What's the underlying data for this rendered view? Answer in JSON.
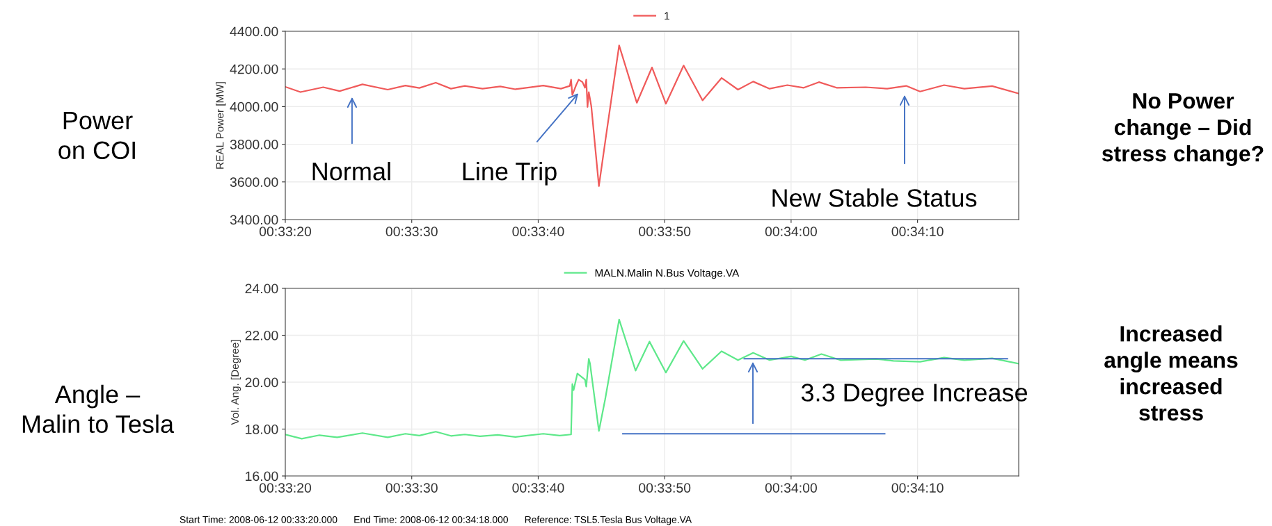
{
  "chart_data": [
    {
      "type": "line",
      "ylabel": "REAL Power [MW]",
      "legend": "top",
      "grid": true,
      "marker": "none",
      "line_style": "solid",
      "xlim": [
        "2008-06-12T00:33:20",
        "2008-06-12T00:34:18"
      ],
      "xticks": [
        {
          "value": "2008-06-12T00:33:20",
          "label": "00:33:20"
        },
        {
          "value": "2008-06-12T00:33:30",
          "label": "00:33:30"
        },
        {
          "value": "2008-06-12T00:33:40",
          "label": "00:33:40"
        },
        {
          "value": "2008-06-12T00:33:50",
          "label": "00:33:50"
        },
        {
          "value": "2008-06-12T00:34:00",
          "label": "00:34:00"
        },
        {
          "value": "2008-06-12T00:34:10",
          "label": "00:34:10"
        }
      ],
      "ylim": [
        3400,
        4400
      ],
      "yticks": [
        {
          "value": 3400,
          "label": "3400.00"
        },
        {
          "value": 3600,
          "label": "3600.00"
        },
        {
          "value": 3800,
          "label": "3800.00"
        },
        {
          "value": 4000,
          "label": "4000.00"
        },
        {
          "value": 4200,
          "label": "4200.00"
        },
        {
          "value": 4400,
          "label": "4400.00"
        }
      ],
      "series": [
        {
          "name": "1",
          "color": "#f05a5a",
          "x": [
            "2008-06-12T00:33:20.0",
            "2008-06-12T00:33:21.2",
            "2008-06-12T00:33:23.0",
            "2008-06-12T00:33:24.3",
            "2008-06-12T00:33:26.1",
            "2008-06-12T00:33:28.1",
            "2008-06-12T00:33:29.5",
            "2008-06-12T00:33:30.6",
            "2008-06-12T00:33:31.9",
            "2008-06-12T00:33:33.1",
            "2008-06-12T00:33:34.2",
            "2008-06-12T00:33:35.6",
            "2008-06-12T00:33:37.0",
            "2008-06-12T00:33:38.2",
            "2008-06-12T00:33:40.4",
            "2008-06-12T00:33:41.8",
            "2008-06-12T00:33:42.5",
            "2008-06-12T00:33:42.6",
            "2008-06-12T00:33:42.7",
            "2008-06-12T00:33:43.0",
            "2008-06-12T00:33:43.2",
            "2008-06-12T00:33:43.5",
            "2008-06-12T00:33:43.7",
            "2008-06-12T00:33:43.8",
            "2008-06-12T00:33:43.9",
            "2008-06-12T00:33:44.0",
            "2008-06-12T00:33:44.2",
            "2008-06-12T00:33:44.8",
            "2008-06-12T00:33:45.3",
            "2008-06-12T00:33:46.4",
            "2008-06-12T00:33:47.8",
            "2008-06-12T00:33:49.0",
            "2008-06-12T00:33:50.1",
            "2008-06-12T00:33:51.5",
            "2008-06-12T00:33:53.0",
            "2008-06-12T00:33:54.5",
            "2008-06-12T00:33:55.8",
            "2008-06-12T00:33:57.0",
            "2008-06-12T00:33:58.3",
            "2008-06-12T00:33:59.7",
            "2008-06-12T00:34:01.0",
            "2008-06-12T00:34:02.2",
            "2008-06-12T00:34:03.6",
            "2008-06-12T00:34:05.9",
            "2008-06-12T00:34:07.6",
            "2008-06-12T00:34:09.1",
            "2008-06-12T00:34:10.2",
            "2008-06-12T00:34:12.1",
            "2008-06-12T00:34:13.7",
            "2008-06-12T00:34:15.9",
            "2008-06-12T00:34:18.0"
          ],
          "values": [
            4105,
            4077,
            4103,
            4082,
            4118,
            4090,
            4112,
            4099,
            4127,
            4095,
            4110,
            4095,
            4107,
            4092,
            4112,
            4095,
            4110,
            4143,
            4062,
            4114,
            4143,
            4130,
            4100,
            4143,
            3998,
            4077,
            4002,
            3578,
            3814,
            4325,
            4020,
            4208,
            4015,
            4218,
            4033,
            4152,
            4090,
            4133,
            4095,
            4114,
            4100,
            4130,
            4100,
            4103,
            4095,
            4110,
            4080,
            4114,
            4095,
            4109,
            4069
          ]
        }
      ],
      "annotations": [
        "Normal",
        "Line Trip",
        "New Stable Status",
        "Power\non COI",
        "No Power\nchange – Did\nstress change?"
      ]
    },
    {
      "type": "line",
      "ylabel": "Vol. Ang. [Degree]",
      "legend": "top",
      "grid": true,
      "marker": "none",
      "line_style": "solid",
      "xlim": [
        "2008-06-12T00:33:20",
        "2008-06-12T00:34:18"
      ],
      "xticks": [
        {
          "value": "2008-06-12T00:33:20",
          "label": "00:33:20"
        },
        {
          "value": "2008-06-12T00:33:30",
          "label": "00:33:30"
        },
        {
          "value": "2008-06-12T00:33:40",
          "label": "00:33:40"
        },
        {
          "value": "2008-06-12T00:33:50",
          "label": "00:33:50"
        },
        {
          "value": "2008-06-12T00:34:00",
          "label": "00:34:00"
        },
        {
          "value": "2008-06-12T00:34:10",
          "label": "00:34:10"
        }
      ],
      "ylim": [
        16,
        24
      ],
      "yticks": [
        {
          "value": 16,
          "label": "16.00"
        },
        {
          "value": 18,
          "label": "18.00"
        },
        {
          "value": 20,
          "label": "20.00"
        },
        {
          "value": 22,
          "label": "22.00"
        },
        {
          "value": 24,
          "label": "24.00"
        }
      ],
      "series": [
        {
          "name": "MALN.Malin N.Bus Voltage.VA",
          "color": "#5ee88a",
          "x": [
            "2008-06-12T00:33:20.0",
            "2008-06-12T00:33:21.3",
            "2008-06-12T00:33:22.7",
            "2008-06-12T00:33:24.1",
            "2008-06-12T00:33:26.1",
            "2008-06-12T00:33:28.1",
            "2008-06-12T00:33:29.5",
            "2008-06-12T00:33:30.6",
            "2008-06-12T00:33:31.9",
            "2008-06-12T00:33:33.1",
            "2008-06-12T00:33:34.2",
            "2008-06-12T00:33:35.4",
            "2008-06-12T00:33:36.8",
            "2008-06-12T00:33:38.2",
            "2008-06-12T00:33:40.4",
            "2008-06-12T00:33:41.7",
            "2008-06-12T00:33:42.6",
            "2008-06-12T00:33:42.7",
            "2008-06-12T00:33:42.8",
            "2008-06-12T00:33:43.1",
            "2008-06-12T00:33:43.7",
            "2008-06-12T00:33:43.8",
            "2008-06-12T00:33:44.0",
            "2008-06-12T00:33:44.1",
            "2008-06-12T00:33:44.8",
            "2008-06-12T00:33:45.3",
            "2008-06-12T00:33:46.4",
            "2008-06-12T00:33:47.7",
            "2008-06-12T00:33:48.8",
            "2008-06-12T00:33:50.1",
            "2008-06-12T00:33:51.5",
            "2008-06-12T00:33:53.0",
            "2008-06-12T00:33:54.5",
            "2008-06-12T00:33:55.8",
            "2008-06-12T00:33:57.0",
            "2008-06-12T00:33:58.3",
            "2008-06-12T00:34:00.0",
            "2008-06-12T00:34:01.1",
            "2008-06-12T00:34:02.4",
            "2008-06-12T00:34:03.9",
            "2008-06-12T00:34:06.7",
            "2008-06-12T00:34:08.1",
            "2008-06-12T00:34:10.2",
            "2008-06-12T00:34:12.1",
            "2008-06-12T00:34:13.7",
            "2008-06-12T00:34:15.9",
            "2008-06-12T00:34:18.0"
          ],
          "values": [
            17.77,
            17.59,
            17.74,
            17.65,
            17.83,
            17.65,
            17.8,
            17.72,
            17.89,
            17.71,
            17.77,
            17.69,
            17.75,
            17.66,
            17.8,
            17.72,
            17.77,
            19.92,
            19.66,
            20.37,
            20.11,
            19.81,
            21.0,
            20.79,
            17.92,
            19.28,
            22.67,
            20.49,
            21.73,
            20.41,
            21.76,
            20.57,
            21.32,
            20.94,
            21.25,
            20.94,
            21.1,
            20.94,
            21.2,
            20.94,
            20.99,
            20.91,
            20.87,
            21.05,
            20.94,
            21.02,
            20.79
          ]
        },
        {
          "type": "line",
          "color": "#4472c4",
          "x": [
            "2008-06-12T00:33:56.3",
            "2008-06-12T00:34:17.1"
          ],
          "values": [
            21.0,
            21.0
          ]
        },
        {
          "type": "line",
          "color": "#4472c4",
          "x": [
            "2008-06-12T00:33:46.7",
            "2008-06-12T00:34:07.4"
          ],
          "values": [
            17.8,
            17.8
          ]
        }
      ],
      "annotations": [
        "3.3 Degree Increase",
        "Angle –\nMalin to Tesla",
        "Increased\nangle means\nincreased\nstress",
        "Start Time: 2008-06-12 00:33:20.000      End Time: 2008-06-12 00:34:18.000      Reference: TSL5.Tesla Bus Voltage.VA"
      ]
    }
  ]
}
